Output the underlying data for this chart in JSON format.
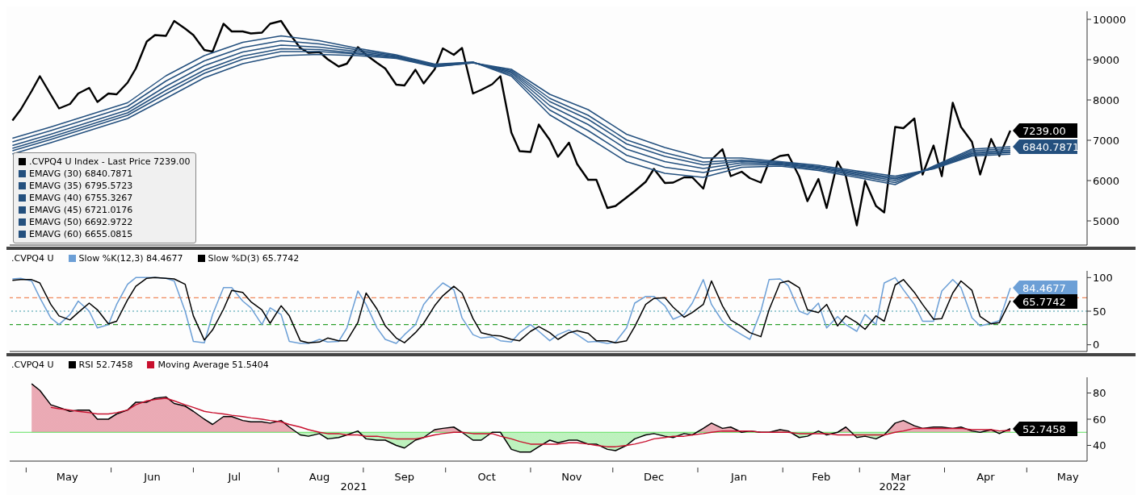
{
  "chart_data": [
    {
      "type": "line",
      "xlim": [
        "2021-04-25",
        "2022-05-23"
      ],
      "ylim": [
        4400,
        10200
      ],
      "yticks": [
        5000,
        6000,
        7000,
        8000,
        9000,
        10000
      ],
      "tick_labels": "y",
      "legend": "bottom left",
      "x": [
        "2021-04-26",
        "2021-04-29",
        "2021-05-03",
        "2021-05-06",
        "2021-05-10",
        "2021-05-13",
        "2021-05-17",
        "2021-05-20",
        "2021-05-24",
        "2021-05-27",
        "2021-05-31",
        "2021-06-03",
        "2021-06-07",
        "2021-06-10",
        "2021-06-14",
        "2021-06-17",
        "2021-06-21",
        "2021-06-24",
        "2021-06-28",
        "2021-07-01",
        "2021-07-05",
        "2021-07-08",
        "2021-07-12",
        "2021-07-15",
        "2021-07-19",
        "2021-07-22",
        "2021-07-26",
        "2021-07-29",
        "2021-08-02",
        "2021-08-05",
        "2021-08-09",
        "2021-08-12",
        "2021-08-16",
        "2021-08-19",
        "2021-08-23",
        "2021-08-26",
        "2021-08-30",
        "2021-09-02",
        "2021-09-06",
        "2021-09-09",
        "2021-09-13",
        "2021-09-16",
        "2021-09-20",
        "2021-09-23",
        "2021-09-27",
        "2021-09-30",
        "2021-10-04",
        "2021-10-07",
        "2021-10-11",
        "2021-10-14",
        "2021-10-18",
        "2021-10-21",
        "2021-10-25",
        "2021-10-28",
        "2021-11-01",
        "2021-11-04",
        "2021-11-08",
        "2021-11-11",
        "2021-11-15",
        "2021-11-18",
        "2021-11-22",
        "2021-11-25",
        "2021-11-29",
        "2021-12-02",
        "2021-12-06",
        "2021-12-09",
        "2021-12-13",
        "2021-12-16",
        "2021-12-20",
        "2021-12-23",
        "2021-12-27",
        "2021-12-30",
        "2022-01-03",
        "2022-01-06",
        "2022-01-10",
        "2022-01-13",
        "2022-01-17",
        "2022-01-20",
        "2022-01-24",
        "2022-01-27",
        "2022-01-31",
        "2022-02-03",
        "2022-02-07",
        "2022-02-10",
        "2022-02-14",
        "2022-02-17",
        "2022-02-21",
        "2022-02-24",
        "2022-02-28",
        "2022-03-03",
        "2022-03-07",
        "2022-03-10",
        "2022-03-14",
        "2022-03-17",
        "2022-03-21",
        "2022-03-24",
        "2022-03-28",
        "2022-03-31",
        "2022-04-04",
        "2022-04-07",
        "2022-04-11",
        "2022-04-14",
        "2022-04-18",
        "2022-04-21",
        "2022-04-25"
      ],
      "series": [
        {
          "name": ".CVPQ4 U Index - Last Price 7239.00",
          "color": "#000000",
          "values": [
            7490,
            7760,
            8220,
            8590,
            8130,
            7790,
            7900,
            8160,
            8300,
            7950,
            8160,
            8140,
            8430,
            8780,
            9450,
            9610,
            9590,
            9960,
            9770,
            9610,
            9240,
            9200,
            9890,
            9700,
            9700,
            9650,
            9670,
            9890,
            9960,
            9650,
            9290,
            9170,
            9190,
            9010,
            8830,
            8900,
            9310,
            9120,
            8920,
            8780,
            8380,
            8360,
            8750,
            8410,
            8760,
            9280,
            9120,
            9290,
            8160,
            8250,
            8390,
            8590,
            7190,
            6730,
            6710,
            7390,
            7010,
            6590,
            6940,
            6410,
            6020,
            6020,
            5320,
            5370,
            5580,
            5740,
            5970,
            6290,
            5940,
            5950,
            6080,
            6080,
            5800,
            6520,
            6780,
            6110,
            6220,
            6060,
            5950,
            6470,
            6610,
            6640,
            6100,
            5490,
            6040,
            5320,
            6470,
            6110,
            4890,
            5990,
            5370,
            5210,
            7330,
            7300,
            7540,
            6150,
            6870,
            6110,
            7930,
            7330,
            6960,
            6150,
            7030,
            6610,
            7239
          ],
          "value_labels": [
            null,
            null,
            null,
            null,
            null,
            null,
            null,
            null,
            null,
            null,
            null,
            null,
            null,
            null,
            null,
            null,
            null,
            null,
            null,
            null,
            null,
            null,
            null,
            null,
            null,
            null,
            null,
            null,
            null,
            null,
            null,
            null,
            null,
            null,
            null,
            null,
            null,
            null,
            null,
            null,
            null,
            null,
            null,
            null,
            null,
            null,
            null,
            null,
            null,
            null,
            null,
            null,
            null,
            null,
            null,
            null,
            null,
            null,
            null,
            null,
            null,
            null,
            null,
            null,
            null,
            null,
            null,
            null,
            null,
            null,
            null,
            null,
            null,
            null,
            null,
            null,
            null,
            null,
            null,
            null,
            null,
            null,
            null,
            null,
            null,
            null,
            null,
            null,
            null,
            null,
            null,
            null,
            null,
            null,
            null,
            null,
            null,
            null,
            null,
            null,
            null,
            null,
            null,
            null,
            "7239.00"
          ]
        },
        {
          "name": "EMAVG (30) 6840.7871",
          "color": "#24507e",
          "x": [
            "2021-04-26",
            "2021-05-10",
            "2021-05-24",
            "2021-06-07",
            "2021-06-21",
            "2021-07-05",
            "2021-07-19",
            "2021-08-02",
            "2021-08-16",
            "2021-08-30",
            "2021-09-13",
            "2021-09-27",
            "2021-10-11",
            "2021-10-25",
            "2021-11-08",
            "2021-11-22",
            "2021-12-06",
            "2021-12-20",
            "2022-01-03",
            "2022-01-17",
            "2022-01-31",
            "2022-02-14",
            "2022-02-28",
            "2022-03-14",
            "2022-03-28",
            "2022-04-11",
            "2022-04-25"
          ],
          "values": [
            7050,
            7330,
            7630,
            7930,
            8600,
            9100,
            9430,
            9590,
            9470,
            9280,
            9120,
            8890,
            8940,
            8590,
            7630,
            7070,
            6470,
            6180,
            6080,
            6330,
            6360,
            6250,
            6080,
            5900,
            6360,
            6780,
            6840.7871
          ],
          "value_labels": [
            null,
            null,
            null,
            null,
            null,
            null,
            null,
            null,
            null,
            null,
            null,
            null,
            null,
            null,
            null,
            null,
            null,
            null,
            null,
            null,
            null,
            null,
            null,
            null,
            null,
            null,
            "6840.7871"
          ]
        },
        {
          "name": "EMAVG (35) 6795.5723",
          "color": "#24507e",
          "x": [
            "2021-04-26",
            "2021-05-10",
            "2021-05-24",
            "2021-06-07",
            "2021-06-21",
            "2021-07-05",
            "2021-07-19",
            "2021-08-02",
            "2021-08-16",
            "2021-08-30",
            "2021-09-13",
            "2021-09-27",
            "2021-10-11",
            "2021-10-25",
            "2021-11-08",
            "2021-11-22",
            "2021-12-06",
            "2021-12-20",
            "2022-01-03",
            "2022-01-17",
            "2022-01-31",
            "2022-02-14",
            "2022-02-28",
            "2022-03-14",
            "2022-03-28",
            "2022-04-11",
            "2022-04-25"
          ],
          "values": [
            6960,
            7240,
            7540,
            7840,
            8470,
            8970,
            9300,
            9470,
            9390,
            9240,
            9100,
            8870,
            8940,
            8630,
            7750,
            7240,
            6630,
            6330,
            6200,
            6390,
            6390,
            6280,
            6120,
            5950,
            6340,
            6740,
            6795.5723
          ]
        },
        {
          "name": "EMAVG (40) 6755.3267",
          "color": "#24507e",
          "x": [
            "2021-04-26",
            "2021-05-10",
            "2021-05-24",
            "2021-06-07",
            "2021-06-21",
            "2021-07-05",
            "2021-07-19",
            "2021-08-02",
            "2021-08-16",
            "2021-08-30",
            "2021-09-13",
            "2021-09-27",
            "2021-10-11",
            "2021-10-25",
            "2021-11-08",
            "2021-11-22",
            "2021-12-06",
            "2021-12-20",
            "2022-01-03",
            "2022-01-17",
            "2022-01-31",
            "2022-02-14",
            "2022-02-28",
            "2022-03-14",
            "2022-03-28",
            "2022-04-11",
            "2022-04-25"
          ],
          "values": [
            6870,
            7150,
            7450,
            7750,
            8340,
            8850,
            9190,
            9360,
            9310,
            9200,
            9080,
            8860,
            8930,
            8670,
            7860,
            7390,
            6780,
            6470,
            6300,
            6440,
            6410,
            6310,
            6150,
            6000,
            6330,
            6700,
            6755.3267
          ]
        },
        {
          "name": "EMAVG (45) 6721.0176",
          "color": "#24507e",
          "x": [
            "2021-04-26",
            "2021-05-10",
            "2021-05-24",
            "2021-06-07",
            "2021-06-21",
            "2021-07-05",
            "2021-07-19",
            "2021-08-02",
            "2021-08-16",
            "2021-08-30",
            "2021-09-13",
            "2021-09-27",
            "2021-10-11",
            "2021-10-25",
            "2021-11-08",
            "2021-11-22",
            "2021-12-06",
            "2021-12-20",
            "2022-01-03",
            "2022-01-17",
            "2022-01-31",
            "2022-02-14",
            "2022-02-28",
            "2022-03-14",
            "2022-03-28",
            "2022-04-11",
            "2022-04-25"
          ],
          "values": [
            6800,
            7080,
            7380,
            7680,
            8240,
            8740,
            9090,
            9270,
            9250,
            9160,
            9060,
            8840,
            8930,
            8700,
            7960,
            7520,
            6910,
            6600,
            6390,
            6480,
            6430,
            6330,
            6180,
            6040,
            6310,
            6670,
            6721.0176
          ]
        },
        {
          "name": "EMAVG (50) 6692.9722",
          "color": "#24507e",
          "x": [
            "2021-04-26",
            "2021-05-10",
            "2021-05-24",
            "2021-06-07",
            "2021-06-21",
            "2021-07-05",
            "2021-07-19",
            "2021-08-02",
            "2021-08-16",
            "2021-08-30",
            "2021-09-13",
            "2021-09-27",
            "2021-10-11",
            "2021-10-25",
            "2021-11-08",
            "2021-11-22",
            "2021-12-06",
            "2021-12-20",
            "2022-01-03",
            "2022-01-17",
            "2022-01-31",
            "2022-02-14",
            "2022-02-28",
            "2022-03-14",
            "2022-03-28",
            "2022-04-11",
            "2022-04-25"
          ],
          "values": [
            6740,
            7020,
            7320,
            7620,
            8150,
            8660,
            9010,
            9200,
            9200,
            9140,
            9050,
            8830,
            8920,
            8730,
            8040,
            7620,
            7010,
            6690,
            6460,
            6510,
            6450,
            6350,
            6210,
            6070,
            6300,
            6640,
            6692.9722
          ]
        },
        {
          "name": "EMAVG (60) 6655.0815",
          "color": "#24507e",
          "x": [
            "2021-04-26",
            "2021-05-10",
            "2021-05-24",
            "2021-06-07",
            "2021-06-21",
            "2021-07-05",
            "2021-07-19",
            "2021-08-02",
            "2021-08-16",
            "2021-08-30",
            "2021-09-13",
            "2021-09-27",
            "2021-10-11",
            "2021-10-25",
            "2021-11-08",
            "2021-11-22",
            "2021-12-06",
            "2021-12-20",
            "2022-01-03",
            "2022-01-17",
            "2022-01-31",
            "2022-02-14",
            "2022-02-28",
            "2022-03-14",
            "2022-03-28",
            "2022-04-11",
            "2022-04-25"
          ],
          "values": [
            6660,
            6940,
            7240,
            7540,
            8040,
            8550,
            8900,
            9100,
            9130,
            9100,
            9030,
            8820,
            8920,
            8760,
            8140,
            7760,
            7150,
            6820,
            6560,
            6560,
            6470,
            6380,
            6240,
            6110,
            6290,
            6610,
            6655.0815
          ]
        }
      ]
    },
    {
      "type": "line",
      "xlim": [
        "2021-04-25",
        "2022-05-23"
      ],
      "ylim": [
        -10,
        110
      ],
      "yticks": [
        0,
        50,
        100
      ],
      "tick_labels": "y",
      "legend": "top left",
      "legend_title": ".CVPQ4 U",
      "x": [
        "2021-04-26",
        "2021-04-29",
        "2021-05-03",
        "2021-05-06",
        "2021-05-10",
        "2021-05-13",
        "2021-05-17",
        "2021-05-20",
        "2021-05-24",
        "2021-05-27",
        "2021-05-31",
        "2021-06-03",
        "2021-06-07",
        "2021-06-10",
        "2021-06-14",
        "2021-06-17",
        "2021-06-21",
        "2021-06-24",
        "2021-06-28",
        "2021-07-01",
        "2021-07-05",
        "2021-07-08",
        "2021-07-12",
        "2021-07-15",
        "2021-07-19",
        "2021-07-22",
        "2021-07-26",
        "2021-07-29",
        "2021-08-02",
        "2021-08-05",
        "2021-08-09",
        "2021-08-12",
        "2021-08-16",
        "2021-08-19",
        "2021-08-23",
        "2021-08-26",
        "2021-08-30",
        "2021-09-02",
        "2021-09-06",
        "2021-09-09",
        "2021-09-13",
        "2021-09-16",
        "2021-09-20",
        "2021-09-23",
        "2021-09-27",
        "2021-09-30",
        "2021-10-04",
        "2021-10-07",
        "2021-10-11",
        "2021-10-14",
        "2021-10-18",
        "2021-10-21",
        "2021-10-25",
        "2021-10-28",
        "2021-11-01",
        "2021-11-04",
        "2021-11-08",
        "2021-11-11",
        "2021-11-15",
        "2021-11-18",
        "2021-11-22",
        "2021-11-25",
        "2021-11-29",
        "2021-12-02",
        "2021-12-06",
        "2021-12-09",
        "2021-12-13",
        "2021-12-16",
        "2021-12-20",
        "2021-12-23",
        "2021-12-27",
        "2021-12-30",
        "2022-01-03",
        "2022-01-06",
        "2022-01-10",
        "2022-01-13",
        "2022-01-17",
        "2022-01-20",
        "2022-01-24",
        "2022-01-27",
        "2022-01-31",
        "2022-02-03",
        "2022-02-07",
        "2022-02-10",
        "2022-02-14",
        "2022-02-17",
        "2022-02-21",
        "2022-02-24",
        "2022-02-28",
        "2022-03-03",
        "2022-03-07",
        "2022-03-10",
        "2022-03-14",
        "2022-03-17",
        "2022-03-21",
        "2022-03-24",
        "2022-03-28",
        "2022-03-31",
        "2022-04-04",
        "2022-04-07",
        "2022-04-11",
        "2022-04-14",
        "2022-04-18",
        "2022-04-21",
        "2022-04-25"
      ],
      "ref_lines": [
        {
          "axis": "y",
          "value": 70,
          "color": "#f08a5d",
          "line_style": "dashed"
        },
        {
          "axis": "y",
          "value": 50,
          "color": "#3d9aa8",
          "line_style": "dotted"
        },
        {
          "axis": "y",
          "value": 30,
          "color": "#2ca02c",
          "line_style": "dashed"
        }
      ],
      "series": [
        {
          "name": "Slow %K(12,3) 84.4677",
          "color": "#6c9fd6",
          "values": [
            98,
            99,
            95,
            70,
            40,
            30,
            45,
            65,
            50,
            25,
            30,
            60,
            90,
            100,
            100,
            100,
            99,
            95,
            50,
            5,
            3,
            45,
            85,
            85,
            65,
            55,
            30,
            55,
            45,
            5,
            2,
            2,
            8,
            4,
            5,
            25,
            80,
            60,
            25,
            8,
            2,
            15,
            30,
            60,
            80,
            92,
            82,
            40,
            15,
            10,
            12,
            6,
            4,
            18,
            30,
            20,
            6,
            15,
            22,
            15,
            4,
            5,
            2,
            4,
            25,
            62,
            72,
            72,
            58,
            38,
            45,
            62,
            97,
            60,
            35,
            25,
            15,
            8,
            50,
            97,
            98,
            88,
            50,
            45,
            62,
            25,
            42,
            30,
            20,
            45,
            30,
            92,
            100,
            82,
            60,
            35,
            35,
            80,
            97,
            85,
            40,
            28,
            32,
            36,
            84.4677
          ],
          "value_labels": [
            null,
            null,
            null,
            null,
            null,
            null,
            null,
            null,
            null,
            null,
            null,
            null,
            null,
            null,
            null,
            null,
            null,
            null,
            null,
            null,
            null,
            null,
            null,
            null,
            null,
            null,
            null,
            null,
            null,
            null,
            null,
            null,
            null,
            null,
            null,
            null,
            null,
            null,
            null,
            null,
            null,
            null,
            null,
            null,
            null,
            null,
            null,
            null,
            null,
            null,
            null,
            null,
            null,
            null,
            null,
            null,
            null,
            null,
            null,
            null,
            null,
            null,
            null,
            null,
            null,
            null,
            null,
            null,
            null,
            null,
            null,
            null,
            null,
            null,
            null,
            null,
            null,
            null,
            null,
            null,
            null,
            null,
            null,
            null,
            null,
            null,
            null,
            null,
            null,
            null,
            null,
            null,
            null,
            null,
            null,
            null,
            null,
            null,
            null,
            null,
            null,
            null,
            null,
            null,
            "84.4677"
          ]
        },
        {
          "name": "Slow %D(3) 65.7742",
          "color": "#000000",
          "values": [
            96,
            97,
            97,
            92,
            60,
            43,
            37,
            48,
            62,
            52,
            31,
            35,
            67,
            87,
            99,
            100,
            99,
            98,
            90,
            43,
            7,
            22,
            53,
            81,
            78,
            64,
            52,
            32,
            58,
            43,
            6,
            3,
            4,
            10,
            6,
            6,
            33,
            77,
            53,
            28,
            10,
            3,
            18,
            32,
            58,
            73,
            87,
            77,
            39,
            18,
            14,
            13,
            8,
            6,
            20,
            27,
            18,
            8,
            18,
            21,
            17,
            6,
            6,
            3,
            6,
            27,
            60,
            69,
            70,
            56,
            41,
            48,
            60,
            95,
            58,
            37,
            27,
            18,
            12,
            52,
            92,
            95,
            85,
            52,
            48,
            60,
            28,
            43,
            33,
            23,
            43,
            35,
            89,
            97,
            78,
            60,
            38,
            39,
            77,
            95,
            81,
            42,
            31,
            33,
            65.7742
          ],
          "value_labels": [
            null,
            null,
            null,
            null,
            null,
            null,
            null,
            null,
            null,
            null,
            null,
            null,
            null,
            null,
            null,
            null,
            null,
            null,
            null,
            null,
            null,
            null,
            null,
            null,
            null,
            null,
            null,
            null,
            null,
            null,
            null,
            null,
            null,
            null,
            null,
            null,
            null,
            null,
            null,
            null,
            null,
            null,
            null,
            null,
            null,
            null,
            null,
            null,
            null,
            null,
            null,
            null,
            null,
            null,
            null,
            null,
            null,
            null,
            null,
            null,
            null,
            null,
            null,
            null,
            null,
            null,
            null,
            null,
            null,
            null,
            null,
            null,
            null,
            null,
            null,
            null,
            null,
            null,
            null,
            null,
            null,
            null,
            null,
            null,
            null,
            null,
            null,
            null,
            null,
            null,
            null,
            null,
            null,
            null,
            null,
            null,
            null,
            null,
            null,
            null,
            null,
            null,
            null,
            null,
            "65.7742"
          ]
        }
      ]
    },
    {
      "type": "line",
      "xlim": [
        "2021-04-25",
        "2022-05-23"
      ],
      "ylim": [
        28,
        92
      ],
      "yticks": [
        40,
        60,
        80
      ],
      "legend": "top left",
      "legend_title": ".CVPQ4 U",
      "xticks": [
        {
          "value": "2021-05-01",
          "label": null
        },
        {
          "value": "2021-05-16",
          "label": "May"
        },
        {
          "value": "2021-06-01",
          "label": null
        },
        {
          "value": "2021-06-16",
          "label": "Jun"
        },
        {
          "value": "2021-07-01",
          "label": null
        },
        {
          "value": "2021-07-16",
          "label": "Jul"
        },
        {
          "value": "2021-08-01",
          "label": null
        },
        {
          "value": "2021-08-16",
          "label": "Aug"
        },
        {
          "value": "2021-09-01",
          "label": null
        },
        {
          "value": "2021-09-16",
          "label": "Sep"
        },
        {
          "value": "2021-10-01",
          "label": null
        },
        {
          "value": "2021-10-16",
          "label": "Oct"
        },
        {
          "value": "2021-11-01",
          "label": null
        },
        {
          "value": "2021-11-16",
          "label": "Nov"
        },
        {
          "value": "2021-12-01",
          "label": null
        },
        {
          "value": "2021-12-16",
          "label": "Dec"
        },
        {
          "value": "2022-01-01",
          "label": null
        },
        {
          "value": "2022-01-16",
          "label": "Jan"
        },
        {
          "value": "2022-02-01",
          "label": null
        },
        {
          "value": "2022-02-15",
          "label": "Feb"
        },
        {
          "value": "2022-03-01",
          "label": null
        },
        {
          "value": "2022-03-16",
          "label": "Mar"
        },
        {
          "value": "2022-04-01",
          "label": null
        },
        {
          "value": "2022-04-16",
          "label": "Apr"
        },
        {
          "value": "2022-05-01",
          "label": null
        },
        {
          "value": "2022-05-16",
          "label": "May"
        }
      ],
      "annotations": [
        "2021",
        "2022"
      ],
      "x": [
        "2021-05-03",
        "2021-05-06",
        "2021-05-10",
        "2021-05-13",
        "2021-05-17",
        "2021-05-20",
        "2021-05-24",
        "2021-05-27",
        "2021-05-31",
        "2021-06-03",
        "2021-06-07",
        "2021-06-10",
        "2021-06-14",
        "2021-06-17",
        "2021-06-21",
        "2021-06-24",
        "2021-06-28",
        "2021-07-01",
        "2021-07-05",
        "2021-07-08",
        "2021-07-12",
        "2021-07-15",
        "2021-07-19",
        "2021-07-22",
        "2021-07-26",
        "2021-07-29",
        "2021-08-02",
        "2021-08-05",
        "2021-08-09",
        "2021-08-12",
        "2021-08-16",
        "2021-08-19",
        "2021-08-23",
        "2021-08-26",
        "2021-08-30",
        "2021-09-02",
        "2021-09-06",
        "2021-09-09",
        "2021-09-13",
        "2021-09-16",
        "2021-09-20",
        "2021-09-23",
        "2021-09-27",
        "2021-09-30",
        "2021-10-04",
        "2021-10-07",
        "2021-10-11",
        "2021-10-14",
        "2021-10-18",
        "2021-10-21",
        "2021-10-25",
        "2021-10-28",
        "2021-11-01",
        "2021-11-04",
        "2021-11-08",
        "2021-11-11",
        "2021-11-15",
        "2021-11-18",
        "2021-11-22",
        "2021-11-25",
        "2021-11-29",
        "2021-12-02",
        "2021-12-06",
        "2021-12-09",
        "2021-12-13",
        "2021-12-16",
        "2021-12-20",
        "2021-12-23",
        "2021-12-27",
        "2021-12-30",
        "2022-01-03",
        "2022-01-06",
        "2022-01-10",
        "2022-01-13",
        "2022-01-17",
        "2022-01-20",
        "2022-01-24",
        "2022-01-27",
        "2022-01-31",
        "2022-02-03",
        "2022-02-07",
        "2022-02-10",
        "2022-02-14",
        "2022-02-17",
        "2022-02-21",
        "2022-02-24",
        "2022-02-28",
        "2022-03-03",
        "2022-03-07",
        "2022-03-10",
        "2022-03-14",
        "2022-03-17",
        "2022-03-21",
        "2022-03-24",
        "2022-03-28",
        "2022-03-31",
        "2022-04-04",
        "2022-04-07",
        "2022-04-11",
        "2022-04-14",
        "2022-04-18",
        "2022-04-21",
        "2022-04-25"
      ],
      "ref_lines": [
        {
          "axis": "y",
          "value": 50,
          "color": "#5ee05e",
          "line_style": "solid"
        }
      ],
      "series": [
        {
          "name": "RSI 52.7458",
          "type": "area",
          "color": "#000000",
          "values": [
            87,
            82,
            71,
            69,
            66,
            67,
            67,
            60,
            60,
            64,
            67,
            73,
            73,
            76,
            77,
            72,
            70,
            66,
            60,
            56,
            62,
            62,
            59,
            58,
            58,
            57,
            59,
            54,
            48,
            47,
            49,
            45,
            46,
            48,
            51,
            45,
            44,
            44,
            40,
            38,
            44,
            46,
            52,
            53,
            54,
            50,
            44,
            44,
            50,
            50,
            37,
            35,
            35,
            39,
            44,
            42,
            44,
            44,
            41,
            41,
            37,
            36,
            40,
            45,
            48,
            49,
            47,
            46,
            49,
            48,
            53,
            57,
            53,
            54,
            50,
            51,
            50,
            50,
            52,
            51,
            46,
            47,
            51,
            48,
            50,
            54,
            46,
            47,
            45,
            48,
            57,
            59,
            55,
            53,
            54,
            54,
            53,
            54,
            51,
            50,
            52,
            49,
            52.7458
          ],
          "value_labels": [
            null,
            null,
            null,
            null,
            null,
            null,
            null,
            null,
            null,
            null,
            null,
            null,
            null,
            null,
            null,
            null,
            null,
            null,
            null,
            null,
            null,
            null,
            null,
            null,
            null,
            null,
            null,
            null,
            null,
            null,
            null,
            null,
            null,
            null,
            null,
            null,
            null,
            null,
            null,
            null,
            null,
            null,
            null,
            null,
            null,
            null,
            null,
            null,
            null,
            null,
            null,
            null,
            null,
            null,
            null,
            null,
            null,
            null,
            null,
            null,
            null,
            null,
            null,
            null,
            null,
            null,
            null,
            null,
            null,
            null,
            null,
            null,
            null,
            null,
            null,
            null,
            null,
            null,
            null,
            null,
            null,
            null,
            null,
            null,
            null,
            null,
            null,
            null,
            null,
            null,
            null,
            null,
            null,
            null,
            null,
            null,
            null,
            null,
            null,
            null,
            null,
            null,
            "52.7458"
          ]
        },
        {
          "name": "Moving Average 51.5404",
          "color": "#c8102e",
          "values": [
            null,
            null,
            69,
            68,
            67,
            66,
            65,
            64,
            64,
            65,
            67,
            71,
            74,
            75,
            76,
            74,
            71,
            69,
            66,
            65,
            64,
            63,
            62,
            61,
            60,
            59,
            58,
            56,
            54,
            52,
            50,
            49,
            49,
            48,
            48,
            47,
            47,
            46,
            45,
            45,
            45,
            46,
            48,
            49,
            50,
            50,
            49,
            49,
            49,
            47,
            45,
            43,
            41,
            41,
            41,
            41,
            42,
            42,
            41,
            40,
            39,
            39,
            40,
            41,
            43,
            45,
            46,
            47,
            47,
            48,
            49,
            50,
            51,
            51,
            51,
            51,
            50,
            50,
            50,
            50,
            49,
            49,
            49,
            49,
            48,
            48,
            48,
            48,
            48,
            48,
            50,
            51,
            53,
            53,
            53,
            53,
            53,
            53,
            52,
            52,
            52,
            51,
            51.5404
          ]
        }
      ]
    }
  ]
}
